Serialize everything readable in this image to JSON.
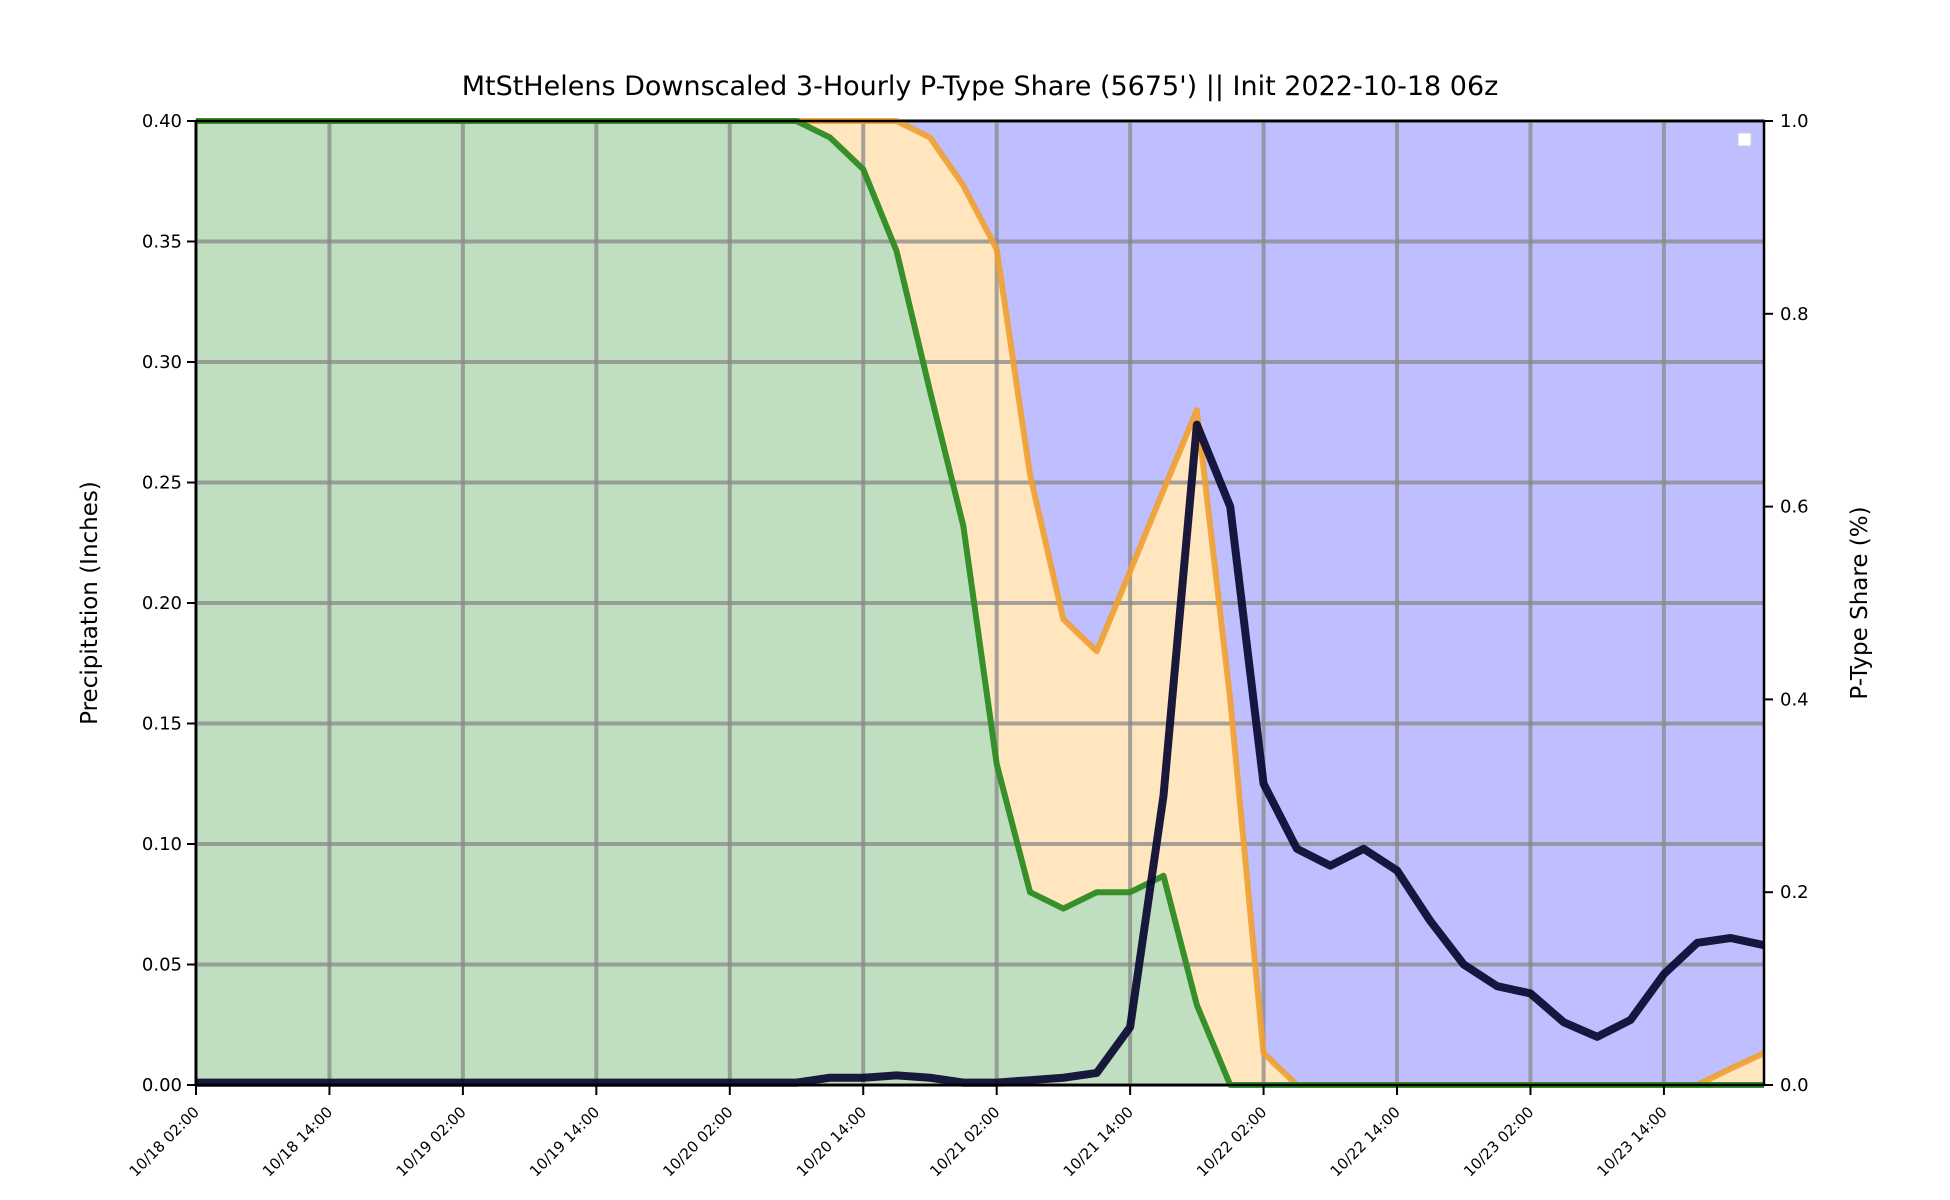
{
  "chart_data": {
    "type": "area",
    "title": "MtStHelens Downscaled 3-Hourly P-Type Share (5675') || Init 2022-10-18 06z",
    "ylabel": "Precipitation (Inches)",
    "y2label": "P-Type Share (%)",
    "ylim": [
      0,
      0.4
    ],
    "y2lim": [
      0,
      1.0
    ],
    "xlim": [
      "10/18 02:00",
      "10/23 23:00"
    ],
    "grid": true,
    "legend": "upper-right (empty)",
    "yticks": [
      "0.00",
      "0.05",
      "0.10",
      "0.15",
      "0.20",
      "0.25",
      "0.30",
      "0.35",
      "0.40"
    ],
    "y2ticks": [
      "0.0",
      "0.2",
      "0.4",
      "0.6",
      "0.8",
      "1.0"
    ],
    "xticks": [
      "10/18 02:00",
      "10/18 14:00",
      "10/19 02:00",
      "10/19 14:00",
      "10/20 02:00",
      "10/20 14:00",
      "10/21 02:00",
      "10/21 14:00",
      "10/22 02:00",
      "10/22 14:00",
      "10/23 02:00",
      "10/23 14:00"
    ],
    "colors": {
      "rain_fill": "#c0dfc0",
      "mix_fill": "#ffe6be",
      "snow_fill": "#bfbfff",
      "rain_share_line": "#2e8b22",
      "snow_share_line": "#f0a030",
      "precip_line": "#080830",
      "grid": "#888888"
    },
    "x": [
      "10/18 02:00",
      "10/18 05:00",
      "10/18 08:00",
      "10/18 11:00",
      "10/18 14:00",
      "10/18 17:00",
      "10/18 20:00",
      "10/18 23:00",
      "10/19 02:00",
      "10/19 05:00",
      "10/19 08:00",
      "10/19 11:00",
      "10/19 14:00",
      "10/19 17:00",
      "10/19 20:00",
      "10/19 23:00",
      "10/20 02:00",
      "10/20 05:00",
      "10/20 08:00",
      "10/20 11:00",
      "10/20 14:00",
      "10/20 17:00",
      "10/20 20:00",
      "10/20 23:00",
      "10/21 02:00",
      "10/21 05:00",
      "10/21 08:00",
      "10/21 11:00",
      "10/21 14:00",
      "10/21 17:00",
      "10/21 20:00",
      "10/21 23:00",
      "10/22 02:00",
      "10/22 05:00",
      "10/22 08:00",
      "10/22 11:00",
      "10/22 14:00",
      "10/22 17:00",
      "10/22 20:00",
      "10/22 23:00",
      "10/23 02:00",
      "10/23 05:00",
      "10/23 08:00",
      "10/23 11:00",
      "10/23 14:00",
      "10/23 17:00",
      "10/23 20:00",
      "10/23 23:00"
    ],
    "series": [
      {
        "role": "rain_share",
        "axis": "right",
        "values": [
          1,
          1,
          1,
          1,
          1,
          1,
          1,
          1,
          1,
          1,
          1,
          1,
          1,
          1,
          1,
          1,
          1,
          1,
          1,
          0.983,
          0.95,
          0.865,
          0.72,
          0.58,
          0.333,
          0.2,
          0.183,
          0.2,
          0.2,
          0.217,
          0.083,
          0,
          0,
          0,
          0,
          0,
          0,
          0,
          0,
          0,
          0,
          0,
          0,
          0,
          0,
          0,
          0,
          0
        ]
      },
      {
        "role": "rain_plus_mix_share",
        "axis": "right",
        "values": [
          1,
          1,
          1,
          1,
          1,
          1,
          1,
          1,
          1,
          1,
          1,
          1,
          1,
          1,
          1,
          1,
          1,
          1,
          1,
          1,
          1,
          1,
          0.983,
          0.933,
          0.867,
          0.633,
          0.483,
          0.45,
          0.533,
          0.617,
          0.7,
          0.4,
          0.033,
          0,
          0,
          0,
          0,
          0,
          0,
          0,
          0,
          0,
          0,
          0,
          0,
          0,
          0.017,
          0.033
        ]
      },
      {
        "role": "precip",
        "axis": "left",
        "values": [
          0.001,
          0.001,
          0.001,
          0.001,
          0.001,
          0.001,
          0.001,
          0.001,
          0.001,
          0.001,
          0.001,
          0.001,
          0.001,
          0.001,
          0.001,
          0.001,
          0.001,
          0.001,
          0.001,
          0.003,
          0.003,
          0.004,
          0.003,
          0.001,
          0.001,
          0.002,
          0.003,
          0.005,
          0.024,
          0.12,
          0.274,
          0.24,
          0.125,
          0.098,
          0.091,
          0.098,
          0.089,
          0.068,
          0.05,
          0.041,
          0.038,
          0.026,
          0.02,
          0.027,
          0.046,
          0.059,
          0.061,
          0.058
        ]
      }
    ]
  }
}
